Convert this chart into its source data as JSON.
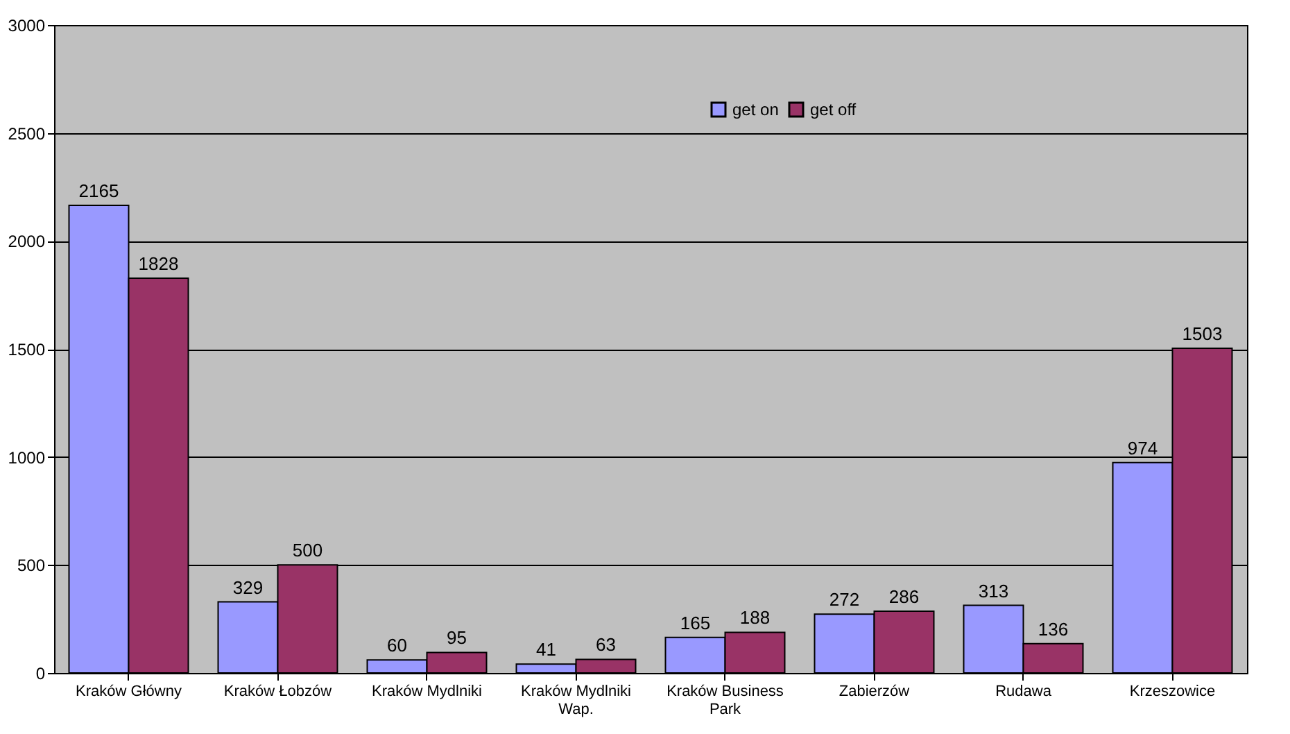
{
  "chart_data": {
    "type": "bar",
    "categories": [
      "Kraków Główny",
      "Kraków Łobzów",
      "Kraków Mydlniki",
      "Kraków Mydlniki Wap.",
      "Kraków Business Park",
      "Zabierzów",
      "Rudawa",
      "Krzeszowice"
    ],
    "series": [
      {
        "name": "get on",
        "color": "#9999ff",
        "values": [
          2165,
          329,
          60,
          41,
          165,
          272,
          313,
          974
        ]
      },
      {
        "name": "get off",
        "color": "#993366",
        "values": [
          1828,
          500,
          95,
          63,
          188,
          286,
          136,
          1503
        ]
      }
    ],
    "ylim": [
      0,
      3000
    ],
    "yticks": [
      0,
      500,
      1000,
      1500,
      2000,
      2500,
      3000
    ],
    "grid": "y",
    "legend": "top",
    "data_labels": true
  }
}
